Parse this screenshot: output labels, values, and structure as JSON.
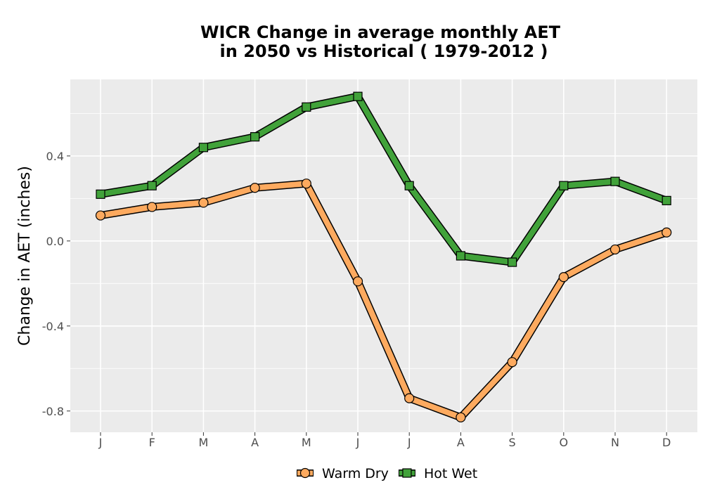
{
  "chart_data": {
    "type": "line",
    "title": "WICR  Change in average monthly AET",
    "subtitle": "in 2050 vs Historical ( 1979-2012 )",
    "xlabel": "",
    "ylabel": "Change in AET (inches)",
    "categories": [
      "J",
      "F",
      "M",
      "A",
      "M",
      "J",
      "J",
      "A",
      "S",
      "O",
      "N",
      "D"
    ],
    "ylim": [
      -0.9,
      0.76
    ],
    "yticks": [
      0.4,
      0.0,
      -0.4,
      -0.8
    ],
    "ytick_labels": [
      "0.4",
      "0.0",
      "-0.4",
      "-0.8"
    ],
    "grid": true,
    "legend_position": "bottom",
    "series": [
      {
        "name": "Warm Dry",
        "marker": "circle",
        "color": "#fdaa5f",
        "values": [
          0.12,
          0.16,
          0.18,
          0.25,
          0.27,
          -0.19,
          -0.74,
          -0.83,
          -0.57,
          -0.17,
          -0.04,
          0.04
        ]
      },
      {
        "name": "Hot Wet",
        "marker": "square",
        "color": "#41a23a",
        "values": [
          0.22,
          0.26,
          0.44,
          0.49,
          0.63,
          0.68,
          0.26,
          -0.07,
          -0.1,
          0.26,
          0.28,
          0.19
        ]
      }
    ]
  }
}
